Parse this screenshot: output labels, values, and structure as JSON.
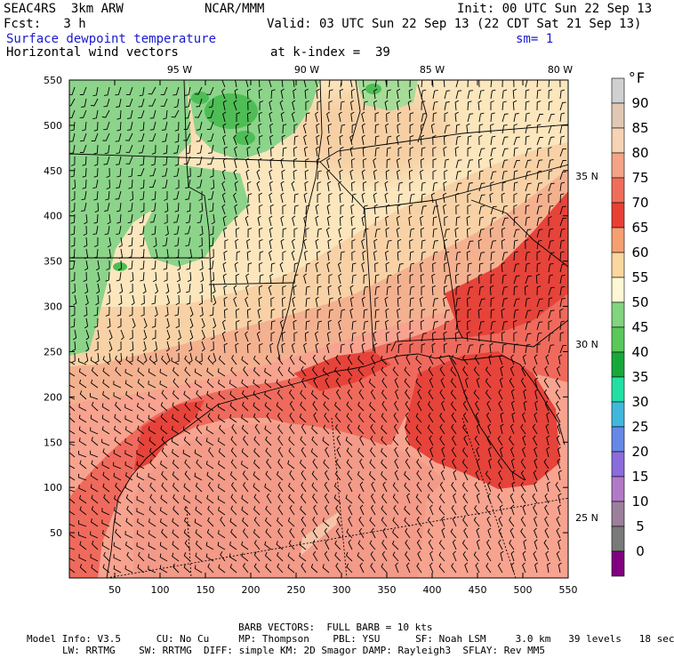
{
  "header": {
    "model_run": "SEAC4RS  3km ARW",
    "institution": "NCAR/MMM",
    "init": "Init: 00 UTC Sun 22 Sep 13",
    "fcst": "Fcst:   3 h",
    "valid": "Valid: 03 UTC Sun 22 Sep 13 (22 CDT Sat 21 Sep 13)",
    "field": "Surface dewpoint temperature",
    "smoothing": "sm= 1",
    "vectors": "Horizontal wind vectors",
    "level": "at k-index =  39"
  },
  "map": {
    "lon_labels": [
      "95 W",
      "90 W",
      "85 W",
      "80 W"
    ],
    "lat_labels": [
      "35 N",
      "30 N",
      "25 N"
    ],
    "y_ticks": [
      "550",
      "500",
      "450",
      "400",
      "350",
      "300",
      "250",
      "200",
      "150",
      "100",
      "50"
    ],
    "x_ticks": [
      "50",
      "100",
      "150",
      "200",
      "250",
      "300",
      "350",
      "400",
      "450",
      "500",
      "550"
    ]
  },
  "colorbar": {
    "unit": "°F",
    "labels": [
      "90",
      "85",
      "80",
      "75",
      "70",
      "65",
      "60",
      "55",
      "50",
      "45",
      "40",
      "35",
      "30",
      "25",
      "20",
      "15",
      "10",
      "5",
      "0"
    ],
    "colors": [
      "#d0d0d0",
      "#e0c8b4",
      "#f5d3b3",
      "#f4a386",
      "#ef6e5a",
      "#e94034",
      "#f6a072",
      "#f9d79e",
      "#fdf7d4",
      "#82d47e",
      "#5ac85a",
      "#18a83a",
      "#22e0a4",
      "#40b8dc",
      "#6688e8",
      "#8b6cdc",
      "#b279c6",
      "#9b7f9b",
      "#7a7a7a",
      "#800080"
    ]
  },
  "footer": {
    "barb_note": "BARB VECTORS:  FULL BARB = 10 kts",
    "line1": "Model Info: V3.5      CU: No Cu     MP: Thompson    PBL: YSU      SF: Noah LSM     3.0 km   39 levels   18 sec",
    "line2": "LW: RRTMG    SW: RRTMG  DIFF: simple KM: 2D Smagor DAMP: Rayleigh3  SFLAY: Rev MM5"
  }
}
